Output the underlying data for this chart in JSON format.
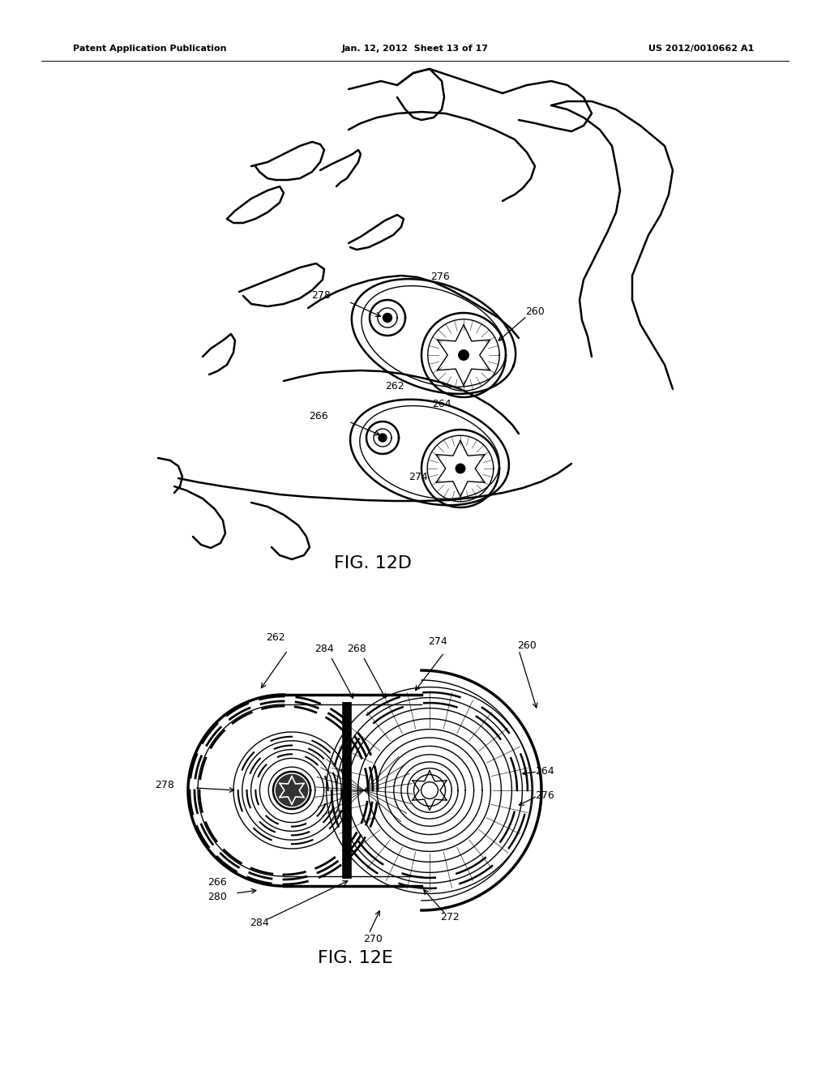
{
  "bg_color": "#ffffff",
  "line_color": "#000000",
  "header_left": "Patent Application Publication",
  "header_center": "Jan. 12, 2012  Sheet 13 of 17",
  "header_right": "US 2012/0010662 A1",
  "fig_label_12D": "FIG. 12D",
  "fig_label_12E": "FIG. 12E"
}
